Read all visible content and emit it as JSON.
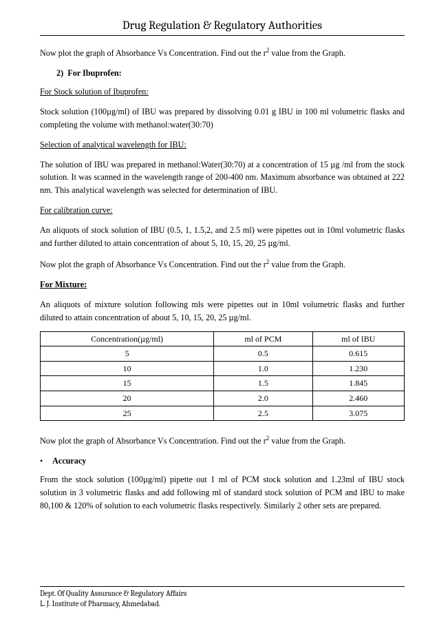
{
  "header": {
    "title": "Drug Regulation & Regulatory Authorities"
  },
  "body": {
    "intro": "Now plot the graph of Absorbance Vs Concentration.  Find out the r",
    "intro_sup": "2",
    "intro2": " value from the Graph.",
    "list_num": "2)",
    "list_label": "For Ibuprofen:",
    "sec1_h": "For Stock solution of Ibuprofen:",
    "sec1_p": "Stock solution (100µg/ml) of IBU was prepared by dissolving 0.01 g IBU in 100 ml volumetric flasks and completing the volume with methanol:water(30:70)",
    "sec2_h": "Selection of analytical wavelength for IBU:",
    "sec2_p": "The solution of IBU was prepared in methanol:Water(30:70) at a concentration of 15 µg /ml from the stock solution. It was scanned in the wavelength range of 200-400 nm. Maximum absorbance was obtained at 222 nm. This analytical wavelength was selected for determination of IBU.",
    "sec3_h": "For calibration curve:",
    "sec3_p": "An aliquots of stock solution of IBU (0.5, 1, 1.5,2, and 2.5 ml) were pipettes out in 10ml volumetric flasks and further diluted to attain concentration of about 5, 10, 15, 20, 25 µg/ml.",
    "sec3_p2a": "Now plot the graph of Absorbance Vs Concentration.  Find out the r",
    "sec3_p2sup": "2",
    "sec3_p2b": " value from the Graph.",
    "mix_h": "For Mixture:",
    "mix_p": "An aliquots of mixture solution following mls were pipettes out in 10ml volumetric flasks and further diluted to attain concentration of about 5, 10, 15, 20, 25 µg/ml.",
    "table": {
      "columns": [
        "Concentration(µg/ml)",
        "ml of PCM",
        "ml of IBU"
      ],
      "rows": [
        [
          "5",
          "0.5",
          "0.615"
        ],
        [
          "10",
          "1.0",
          "1.230"
        ],
        [
          "15",
          "1.5",
          "1.845"
        ],
        [
          "20",
          "2.0",
          "2.460"
        ],
        [
          "25",
          "2.5",
          "3.075"
        ]
      ]
    },
    "post_table_a": "Now plot the graph of Absorbance Vs Concentration.  Find out the r",
    "post_table_sup": "2",
    "post_table_b": " value from the Graph.",
    "bullet_sym": "•",
    "acc_h": "Accuracy",
    "acc_p": "From the stock solution (100µg/ml) pipette out 1 ml of PCM stock solution and 1.23ml of IBU stock solution in 3 volumetric flasks and add following ml of standard stock solution of PCM and IBU to make 80,100 & 120% of solution to each volumetric flasks respectively. Similarly 2 other sets are prepared."
  },
  "footer": {
    "line1": "Dept. Of Quality Assurance & Regulatory Affairs",
    "line2": "L. J. Institute of Pharmacy, Ahmedabad."
  }
}
